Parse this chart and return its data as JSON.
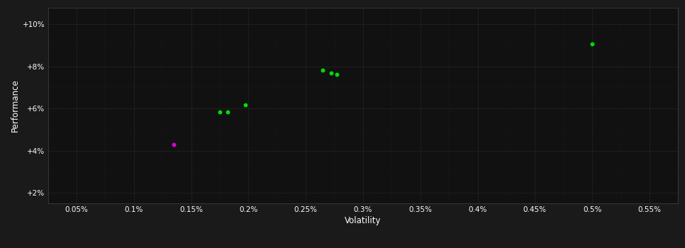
{
  "background_color": "#1a1a1a",
  "plot_bg_color": "#111111",
  "grid_color": "#444444",
  "text_color": "#ffffff",
  "points_green": [
    [
      0.175,
      5.83
    ],
    [
      0.182,
      5.83
    ],
    [
      0.197,
      6.18
    ],
    [
      0.265,
      7.82
    ],
    [
      0.272,
      7.68
    ],
    [
      0.277,
      7.63
    ],
    [
      0.5,
      9.08
    ]
  ],
  "points_magenta": [
    [
      0.135,
      4.28
    ]
  ],
  "green_color": "#00dd00",
  "magenta_color": "#dd00dd",
  "marker_size": 18,
  "xlim": [
    0.025,
    0.575
  ],
  "ylim": [
    1.5,
    10.8
  ],
  "xticks": [
    0.05,
    0.1,
    0.15,
    0.2,
    0.25,
    0.3,
    0.35,
    0.4,
    0.45,
    0.5,
    0.55
  ],
  "yticks": [
    2,
    4,
    6,
    8,
    10
  ],
  "ytick_labels": [
    "+2%",
    "+4%",
    "+6%",
    "+8%",
    "+10%"
  ],
  "xtick_labels": [
    "0.05%",
    "0.1%",
    "0.15%",
    "0.2%",
    "0.25%",
    "0.3%",
    "0.35%",
    "0.4%",
    "0.45%",
    "0.5%",
    "0.55%"
  ],
  "xlabel": "Volatility",
  "ylabel": "Performance",
  "tick_fontsize": 7.5,
  "label_fontsize": 8.5
}
